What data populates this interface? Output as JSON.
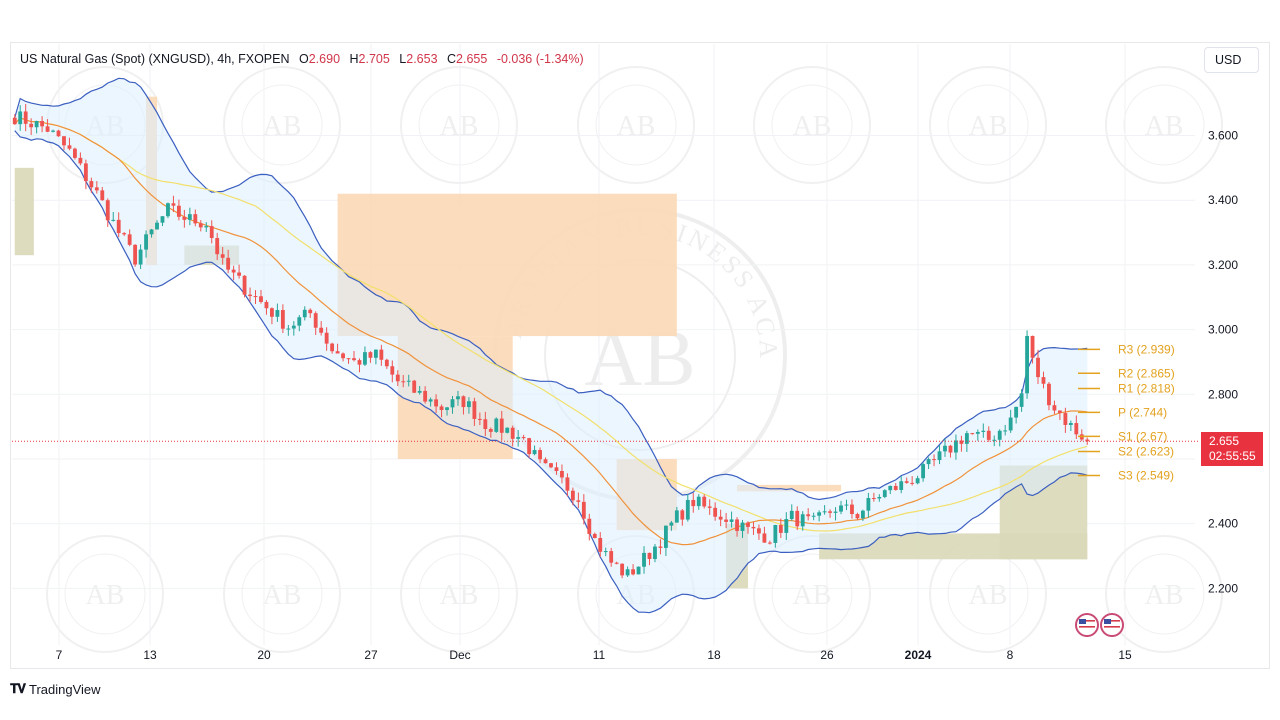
{
  "header": {
    "symbol": "US Natural Gas (Spot) (XNGUSD), 4h, FXOPEN",
    "open_label": "O",
    "open": "2.690",
    "high_label": "H",
    "high": "2.705",
    "low_label": "L",
    "low": "2.653",
    "close_label": "C",
    "close": "2.655",
    "change": "-0.036 (-1.34%)"
  },
  "currency": "USD",
  "price_tag": {
    "price": "2.655",
    "countdown": "02:55:55"
  },
  "branding": "TradingView",
  "watermark_text": "ARABIAN BUSINESS ACADEMY",
  "watermark_monogram": "AB",
  "colors": {
    "up": "#26a69a",
    "down": "#ef5350",
    "ema_fast": "#f0923a",
    "ema_slow": "#f2e06b",
    "band": "#3b5fc0",
    "band_fill": "#ddeeff",
    "supply": "#fbd8b6",
    "demand": "#d9d8b8",
    "pivot": "#e3a21f",
    "price_tag": "#e8323f"
  },
  "chart_data": {
    "type": "candlestick",
    "title": "US Natural Gas (Spot) (XNGUSD), 4h, FXOPEN",
    "ylabel": "USD",
    "ylim": [
      2.12,
      3.78
    ],
    "y_ticks": [
      "3.600",
      "3.400",
      "3.200",
      "3.000",
      "2.800",
      "2.600",
      "2.400",
      "2.200"
    ],
    "x_ticks": [
      "7",
      "13",
      "20",
      "27",
      "Dec",
      "11",
      "18",
      "26",
      "2024",
      "8",
      "15"
    ],
    "price_path": [
      [
        0,
        3.66
      ],
      [
        6,
        3.62
      ],
      [
        10,
        3.55
      ],
      [
        15,
        3.42
      ],
      [
        19,
        3.3
      ],
      [
        22,
        3.22
      ],
      [
        25,
        3.3
      ],
      [
        28,
        3.37
      ],
      [
        32,
        3.34
      ],
      [
        35,
        3.33
      ],
      [
        38,
        3.2
      ],
      [
        42,
        3.13
      ],
      [
        46,
        3.07
      ],
      [
        50,
        3.01
      ],
      [
        54,
        3.05
      ],
      [
        58,
        2.94
      ],
      [
        62,
        2.9
      ],
      [
        66,
        2.92
      ],
      [
        70,
        2.84
      ],
      [
        74,
        2.8
      ],
      [
        78,
        2.76
      ],
      [
        82,
        2.78
      ],
      [
        86,
        2.71
      ],
      [
        90,
        2.69
      ],
      [
        93,
        2.66
      ],
      [
        96,
        2.58
      ],
      [
        100,
        2.53
      ],
      [
        103,
        2.48
      ],
      [
        106,
        2.35
      ],
      [
        109,
        2.28
      ],
      [
        112,
        2.24
      ],
      [
        115,
        2.29
      ],
      [
        118,
        2.35
      ],
      [
        121,
        2.42
      ],
      [
        124,
        2.47
      ],
      [
        127,
        2.44
      ],
      [
        130,
        2.42
      ],
      [
        134,
        2.38
      ],
      [
        138,
        2.36
      ],
      [
        142,
        2.42
      ],
      [
        146,
        2.4
      ],
      [
        150,
        2.45
      ],
      [
        154,
        2.43
      ],
      [
        158,
        2.49
      ],
      [
        162,
        2.52
      ],
      [
        166,
        2.56
      ],
      [
        170,
        2.62
      ],
      [
        174,
        2.68
      ],
      [
        178,
        2.66
      ],
      [
        182,
        2.72
      ],
      [
        184,
        2.8
      ],
      [
        185,
        2.98
      ],
      [
        186,
        2.9
      ],
      [
        188,
        2.82
      ],
      [
        190,
        2.76
      ],
      [
        193,
        2.7
      ],
      [
        196,
        2.66
      ]
    ],
    "series": [
      {
        "name": "Pivot levels",
        "levels": [
          {
            "label": "R3 (2.939)",
            "value": 2.939
          },
          {
            "label": "R2 (2.865)",
            "value": 2.865
          },
          {
            "label": "R1 (2.818)",
            "value": 2.818
          },
          {
            "label": "P (2.744)",
            "value": 2.744
          },
          {
            "label": "S1 (2.67)",
            "value": 2.67
          },
          {
            "label": "S2 (2.623)",
            "value": 2.623
          },
          {
            "label": "S3 (2.549)",
            "value": 2.549
          }
        ]
      }
    ],
    "last_price": 2.655,
    "grid": true,
    "legend": "top-left"
  }
}
